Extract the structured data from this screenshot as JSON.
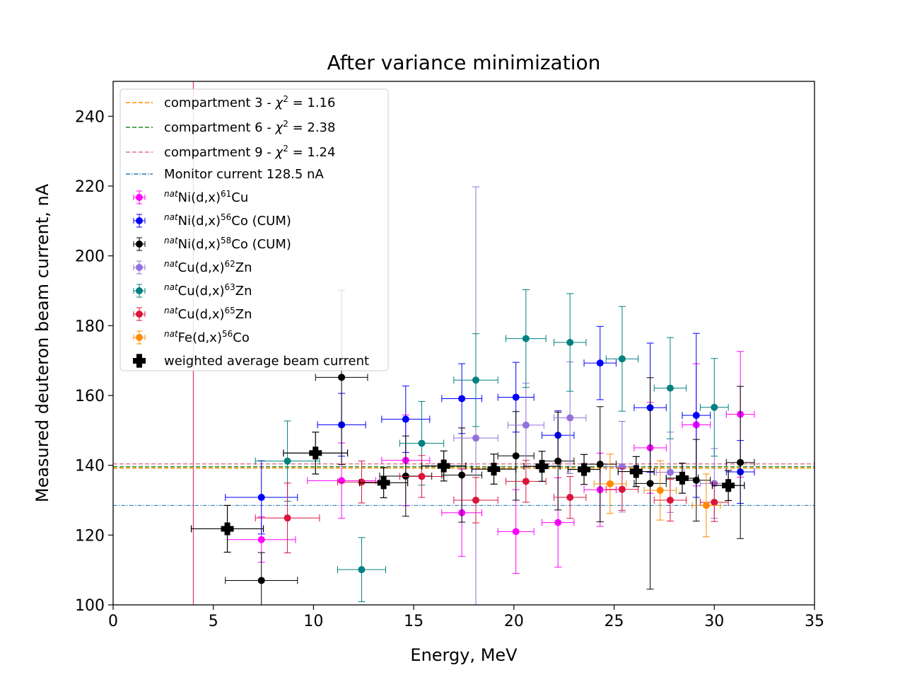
{
  "chart_data": {
    "type": "scatter",
    "title": "After variance minimization",
    "xlabel": "Energy, MeV",
    "ylabel": "Measured deuteron beam current, nA",
    "xlim": [
      0,
      35
    ],
    "ylim": [
      100,
      250
    ],
    "xticks": [
      0,
      5,
      10,
      15,
      20,
      25,
      30,
      35
    ],
    "yticks": [
      100,
      120,
      140,
      160,
      180,
      200,
      220,
      240
    ],
    "grid": false,
    "legend_position": "upper-left",
    "vertical_line": {
      "x": 4.0,
      "color": "#dc143c"
    },
    "hlines": [
      {
        "name": "compartment 3 - χ² = 1.16",
        "prefix": "compartment 3 - ",
        "chi": "1.16",
        "y": 139.2,
        "color": "#ff8c00",
        "style": "dashed"
      },
      {
        "name": "compartment 6 - χ² = 2.38",
        "prefix": "compartment 6 - ",
        "chi": "2.38",
        "y": 139.6,
        "color": "#228b22",
        "style": "dashed"
      },
      {
        "name": "compartment 9 - χ² = 1.24",
        "prefix": "compartment 9 - ",
        "chi": "1.24",
        "y": 140.4,
        "color": "#db7093",
        "style": "dashed"
      },
      {
        "name": "Monitor current 128.5 nA",
        "y": 128.5,
        "color": "#1f77b4",
        "style": "dashdot"
      }
    ],
    "series": [
      {
        "name": "natNi(d,x)61Cu",
        "sup1": "nat",
        "pre": "Ni(d,x)",
        "sup2": "61",
        "post": "Cu",
        "color": "#ff00ff",
        "marker": "circle",
        "points": [
          [
            7.4,
            118.7,
            1.7,
            6.5
          ],
          [
            11.4,
            135.6,
            1.7,
            10.8
          ],
          [
            14.6,
            141.4,
            1.2,
            13
          ],
          [
            17.4,
            126.4,
            1.0,
            12.5
          ],
          [
            20.1,
            121,
            0.9,
            12
          ],
          [
            22.2,
            123.6,
            0.8,
            12.8
          ],
          [
            24.3,
            133,
            0.8,
            10.5
          ],
          [
            26.8,
            145,
            0.8,
            13
          ],
          [
            29.1,
            151.6,
            0.7,
            17.5
          ],
          [
            31.3,
            154.6,
            0.7,
            18
          ]
        ]
      },
      {
        "name": "natNi(d,x)56Co (CUM)",
        "sup1": "nat",
        "pre": "Ni(d,x)",
        "sup2": "56",
        "post": "Co (CUM)",
        "color": "#0000ff",
        "marker": "circle",
        "points": [
          [
            7.4,
            130.8,
            1.8,
            10.5
          ],
          [
            11.4,
            151.6,
            1.2,
            9
          ],
          [
            14.6,
            153.2,
            1.2,
            9.5
          ],
          [
            17.4,
            159.1,
            1.0,
            10
          ],
          [
            20.1,
            159.5,
            0.9,
            10
          ],
          [
            22.2,
            148.6,
            0.8,
            7
          ],
          [
            24.3,
            169.3,
            0.8,
            10.5
          ],
          [
            26.8,
            156.5,
            0.8,
            18.5
          ],
          [
            29.1,
            154.3,
            0.7,
            23.5
          ],
          [
            31.3,
            138.1,
            0.7,
            9
          ]
        ]
      },
      {
        "name": "natNi(d,x)58Co (CUM)",
        "sup1": "nat",
        "pre": "Ni(d,x)",
        "sup2": "58",
        "post": "Co (CUM)",
        "color": "#000000",
        "marker": "circle",
        "points": [
          [
            7.4,
            107,
            1.8,
            8
          ],
          [
            11.4,
            165.2,
            1.3,
            25
          ],
          [
            14.6,
            136.9,
            1.3,
            11.5
          ],
          [
            17.4,
            137.2,
            1.0,
            13.5
          ],
          [
            20.1,
            142.7,
            0.9,
            12.7
          ],
          [
            22.2,
            141.2,
            0.8,
            14
          ],
          [
            24.3,
            140.3,
            0.8,
            16.5
          ],
          [
            26.8,
            134.8,
            0.8,
            30.3
          ],
          [
            29.1,
            135.7,
            0.7,
            11.7
          ],
          [
            31.3,
            140.8,
            0.7,
            21.8
          ]
        ]
      },
      {
        "name": "natCu(d,x)62Zn",
        "sup1": "nat",
        "pre": "Cu(d,x)",
        "sup2": "62",
        "post": "Zn",
        "color": "#9370db",
        "marker": "circle",
        "points": [
          [
            18.1,
            147.8,
            1.1,
            72
          ],
          [
            20.6,
            151.5,
            0.9,
            12
          ],
          [
            22.8,
            153.6,
            0.8,
            16
          ],
          [
            25.4,
            139.6,
            0.8,
            13
          ],
          [
            27.8,
            138,
            0.7,
            11.5
          ],
          [
            30,
            134.8,
            0.7,
            10
          ]
        ]
      },
      {
        "name": "natCu(d,x)63Zn",
        "sup1": "nat",
        "pre": "Cu(d,x)",
        "sup2": "63",
        "post": "Zn",
        "color": "#008080",
        "marker": "circle",
        "points": [
          [
            8.7,
            141.2,
            1.6,
            11.5
          ],
          [
            12.4,
            110.1,
            1.2,
            9.2
          ],
          [
            15.4,
            146.3,
            1.1,
            12
          ],
          [
            18.1,
            164.4,
            1.1,
            13.3
          ],
          [
            20.6,
            176.3,
            1.0,
            14
          ],
          [
            22.8,
            175.2,
            0.8,
            14
          ],
          [
            25.4,
            170.5,
            0.8,
            15
          ],
          [
            27.8,
            162.1,
            0.8,
            14.5
          ],
          [
            30,
            156.6,
            0.7,
            14
          ]
        ]
      },
      {
        "name": "natCu(d,x)65Zn",
        "sup1": "nat",
        "pre": "Cu(d,x)",
        "sup2": "65",
        "post": "Zn",
        "color": "#dc143c",
        "marker": "circle",
        "points": [
          [
            8.7,
            124.9,
            1.6,
            10
          ],
          [
            12.4,
            135.2,
            1.2,
            6
          ],
          [
            15.4,
            136.8,
            1.1,
            6
          ],
          [
            18.1,
            130,
            1.1,
            6.5
          ],
          [
            20.6,
            135.4,
            1.0,
            6
          ],
          [
            22.8,
            130.8,
            0.8,
            6
          ],
          [
            25.4,
            133.1,
            0.8,
            6
          ],
          [
            27.8,
            130,
            0.8,
            6
          ],
          [
            30,
            129.4,
            0.7,
            5.5
          ]
        ]
      },
      {
        "name": "natFe(d,x)56Co",
        "sup1": "nat",
        "pre": "Fe(d,x)",
        "sup2": "56",
        "post": "Co",
        "color": "#ff8c00",
        "marker": "circle",
        "points": [
          [
            24.8,
            134.7,
            0.8,
            8.5
          ],
          [
            27.3,
            132.8,
            0.8,
            8.5
          ],
          [
            29.6,
            128.5,
            0.7,
            9
          ]
        ]
      },
      {
        "name": "weighted average beam current",
        "color": "#000000",
        "marker": "plus",
        "points": [
          [
            5.7,
            121.8,
            1.8,
            6.7
          ],
          [
            10.1,
            143.5,
            1.6,
            6
          ],
          [
            13.5,
            135,
            1.2,
            4.3
          ],
          [
            16.5,
            139.8,
            1.1,
            4.3
          ],
          [
            19,
            138.9,
            1.1,
            4.3
          ],
          [
            21.4,
            139.7,
            0.9,
            4.3
          ],
          [
            23.5,
            138.8,
            0.8,
            4.3
          ],
          [
            26.1,
            138.2,
            0.9,
            4.3
          ],
          [
            28.4,
            136.3,
            0.8,
            4.3
          ],
          [
            30.7,
            134.2,
            0.8,
            4.3
          ]
        ]
      }
    ]
  }
}
